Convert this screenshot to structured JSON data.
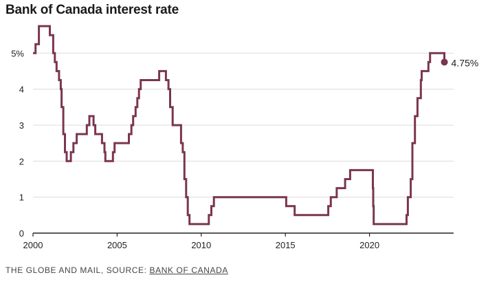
{
  "chart_data": {
    "type": "line",
    "title": "Bank of Canada interest rate",
    "xlabel": "",
    "ylabel": "",
    "xlim": [
      2000,
      2024.5
    ],
    "ylim": [
      0,
      5.75
    ],
    "x_ticks": [
      2000,
      2005,
      2010,
      2015,
      2020
    ],
    "x_tick_labels": [
      "2000",
      "2005",
      "2010",
      "2015",
      "2020"
    ],
    "y_ticks": [
      0,
      1,
      2,
      3,
      4,
      5
    ],
    "y_tick_labels": [
      "0",
      "1",
      "2",
      "3",
      "4",
      "5%"
    ],
    "grid": "horizontal",
    "line_color": "#7a3550",
    "series": [
      {
        "step": true,
        "points": [
          [
            2000.0,
            5.0
          ],
          [
            2000.15,
            5.25
          ],
          [
            2000.35,
            5.75
          ],
          [
            2001.0,
            5.5
          ],
          [
            2001.2,
            5.0
          ],
          [
            2001.3,
            4.75
          ],
          [
            2001.4,
            4.5
          ],
          [
            2001.55,
            4.25
          ],
          [
            2001.65,
            4.0
          ],
          [
            2001.7,
            3.5
          ],
          [
            2001.8,
            2.75
          ],
          [
            2001.9,
            2.25
          ],
          [
            2002.0,
            2.0
          ],
          [
            2002.25,
            2.25
          ],
          [
            2002.4,
            2.5
          ],
          [
            2002.6,
            2.75
          ],
          [
            2003.2,
            3.0
          ],
          [
            2003.35,
            3.25
          ],
          [
            2003.6,
            3.0
          ],
          [
            2003.7,
            2.75
          ],
          [
            2004.1,
            2.5
          ],
          [
            2004.25,
            2.25
          ],
          [
            2004.3,
            2.0
          ],
          [
            2004.75,
            2.25
          ],
          [
            2004.85,
            2.5
          ],
          [
            2005.7,
            2.75
          ],
          [
            2005.85,
            3.0
          ],
          [
            2005.95,
            3.25
          ],
          [
            2006.1,
            3.5
          ],
          [
            2006.2,
            3.75
          ],
          [
            2006.3,
            4.0
          ],
          [
            2006.4,
            4.25
          ],
          [
            2007.5,
            4.5
          ],
          [
            2007.9,
            4.25
          ],
          [
            2008.05,
            4.0
          ],
          [
            2008.15,
            3.5
          ],
          [
            2008.3,
            3.0
          ],
          [
            2008.8,
            2.5
          ],
          [
            2008.9,
            2.25
          ],
          [
            2009.0,
            1.5
          ],
          [
            2009.1,
            1.0
          ],
          [
            2009.2,
            0.5
          ],
          [
            2009.3,
            0.25
          ],
          [
            2010.45,
            0.5
          ],
          [
            2010.6,
            0.75
          ],
          [
            2010.75,
            1.0
          ],
          [
            2015.05,
            0.75
          ],
          [
            2015.55,
            0.5
          ],
          [
            2017.55,
            0.75
          ],
          [
            2017.7,
            1.0
          ],
          [
            2018.05,
            1.25
          ],
          [
            2018.55,
            1.5
          ],
          [
            2018.85,
            1.75
          ],
          [
            2020.2,
            1.25
          ],
          [
            2020.22,
            0.75
          ],
          [
            2020.25,
            0.25
          ],
          [
            2022.2,
            0.5
          ],
          [
            2022.28,
            1.0
          ],
          [
            2022.45,
            1.5
          ],
          [
            2022.55,
            2.5
          ],
          [
            2022.7,
            3.25
          ],
          [
            2022.85,
            3.75
          ],
          [
            2023.05,
            4.25
          ],
          [
            2023.1,
            4.5
          ],
          [
            2023.5,
            4.75
          ],
          [
            2023.6,
            5.0
          ],
          [
            2024.45,
            4.75
          ]
        ]
      }
    ],
    "end_point": {
      "x": 2024.45,
      "y": 4.75,
      "label": "4.75%"
    },
    "source": {
      "prefix": "THE GLOBE AND MAIL, SOURCE: ",
      "link": "BANK OF CANADA"
    }
  }
}
